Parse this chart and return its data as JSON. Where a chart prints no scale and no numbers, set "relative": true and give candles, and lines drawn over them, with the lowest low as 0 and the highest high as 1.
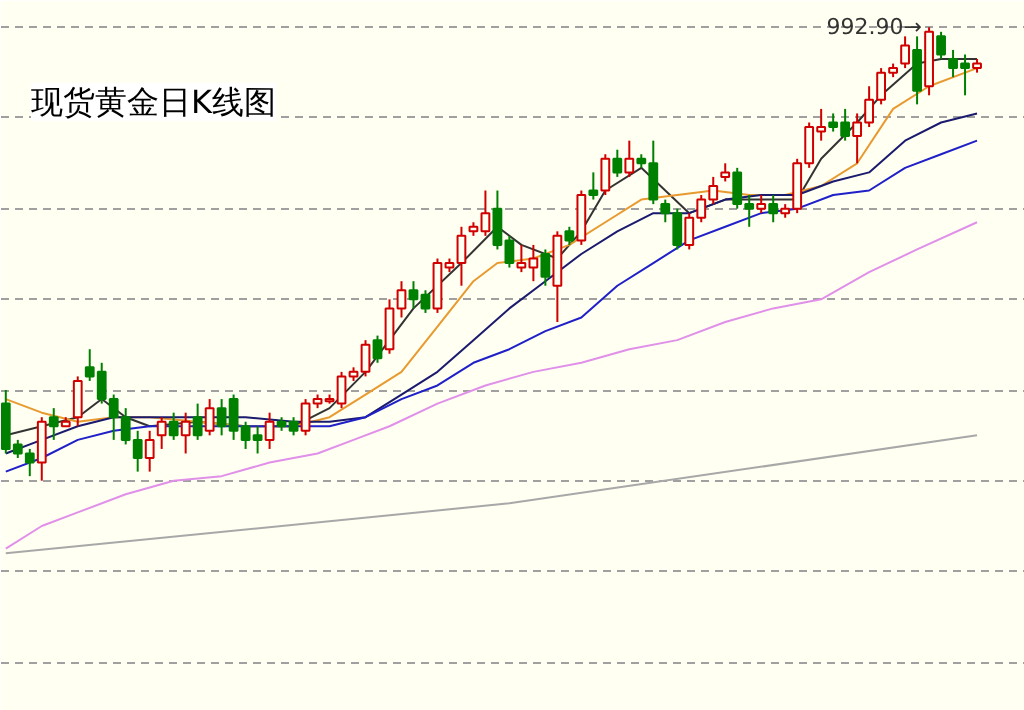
{
  "chart_data": {
    "type": "candlestick",
    "title": "现货黄金日K线图",
    "relative": true,
    "grid": "y",
    "categories": [
      null,
      null,
      null,
      null,
      null,
      null,
      null,
      null,
      null,
      null,
      null,
      null,
      null,
      null,
      null,
      null,
      null,
      null,
      null,
      null,
      null,
      null,
      null,
      null,
      null,
      null,
      null,
      null,
      null,
      null,
      null,
      null,
      null,
      null,
      null,
      null,
      null,
      null,
      null,
      null,
      null,
      null,
      null,
      null,
      null,
      null,
      null,
      null,
      null,
      null,
      null,
      null,
      null,
      null,
      null,
      null,
      null,
      null,
      null,
      null,
      null,
      null,
      null,
      null,
      null,
      null,
      null,
      null,
      null,
      null,
      null,
      null,
      null,
      null,
      null,
      null,
      null,
      null,
      null,
      null,
      null,
      null
    ],
    "colors": [
      "#008000",
      "#008000",
      "#008000",
      "#d00000",
      "#008000",
      "#d00000",
      "#d00000",
      "#008000",
      "#008000",
      "#008000",
      "#008000",
      "#008000",
      "#d00000",
      "#d00000",
      "#008000",
      "#d00000",
      "#008000",
      "#d00000",
      "#008000",
      "#008000",
      "#008000",
      "#008000",
      "#d00000",
      "#008000",
      "#008000",
      "#d00000",
      "#d00000",
      "#d00000",
      "#d00000",
      "#d00000",
      "#d00000",
      "#008000",
      "#d00000",
      "#d00000",
      "#008000",
      "#008000",
      "#d00000",
      "#d00000",
      "#d00000",
      "#d00000",
      "#d00000",
      "#008000",
      "#008000",
      "#d00000",
      "#d00000",
      "#008000",
      "#d00000",
      "#008000",
      "#d00000",
      "#008000",
      "#d00000",
      "#008000",
      "#d00000",
      "#008000",
      "#008000",
      "#008000",
      "#008000",
      "#d00000",
      "#d00000",
      "#d00000",
      "#d00000",
      "#008000",
      "#008000",
      "#d00000",
      "#008000",
      "#d00000",
      "#d00000",
      "#d00000",
      "#d00000",
      "#008000",
      "#008000",
      "#d00000",
      "#d00000",
      "#d00000",
      "#d00000",
      "#d00000",
      "#008000",
      "#d00000",
      "#008000",
      "#008000",
      "#008000",
      "#d00000"
    ],
    "ohlc": [
      [
        0.17,
        0.2,
        0.06,
        0.07
      ],
      [
        0.08,
        0.09,
        0.05,
        0.06
      ],
      [
        0.06,
        0.07,
        0.01,
        0.04
      ],
      [
        0.04,
        0.14,
        0.0,
        0.13
      ],
      [
        0.14,
        0.16,
        0.09,
        0.12
      ],
      [
        0.12,
        0.14,
        0.12,
        0.13
      ],
      [
        0.14,
        0.23,
        0.12,
        0.22
      ],
      [
        0.25,
        0.29,
        0.22,
        0.23
      ],
      [
        0.24,
        0.26,
        0.17,
        0.18
      ],
      [
        0.18,
        0.19,
        0.09,
        0.14
      ],
      [
        0.14,
        0.16,
        0.08,
        0.09
      ],
      [
        0.09,
        0.11,
        0.02,
        0.05
      ],
      [
        0.05,
        0.11,
        0.02,
        0.09
      ],
      [
        0.1,
        0.14,
        0.07,
        0.13
      ],
      [
        0.13,
        0.15,
        0.09,
        0.1
      ],
      [
        0.1,
        0.15,
        0.06,
        0.13
      ],
      [
        0.14,
        0.17,
        0.09,
        0.1
      ],
      [
        0.11,
        0.18,
        0.1,
        0.16
      ],
      [
        0.16,
        0.18,
        0.1,
        0.12
      ],
      [
        0.18,
        0.19,
        0.09,
        0.11
      ],
      [
        0.12,
        0.13,
        0.07,
        0.09
      ],
      [
        0.1,
        0.12,
        0.06,
        0.09
      ],
      [
        0.09,
        0.15,
        0.07,
        0.13
      ],
      [
        0.13,
        0.14,
        0.11,
        0.12
      ],
      [
        0.13,
        0.14,
        0.1,
        0.11
      ],
      [
        0.11,
        0.18,
        0.1,
        0.17
      ],
      [
        0.17,
        0.19,
        0.16,
        0.18
      ],
      [
        0.175,
        0.19,
        0.17,
        0.18
      ],
      [
        0.17,
        0.24,
        0.16,
        0.23
      ],
      [
        0.23,
        0.25,
        0.22,
        0.24
      ],
      [
        0.24,
        0.31,
        0.23,
        0.3
      ],
      [
        0.31,
        0.32,
        0.26,
        0.27
      ],
      [
        0.29,
        0.4,
        0.28,
        0.38
      ],
      [
        0.38,
        0.44,
        0.36,
        0.42
      ],
      [
        0.42,
        0.44,
        0.38,
        0.4
      ],
      [
        0.41,
        0.42,
        0.37,
        0.38
      ],
      [
        0.38,
        0.49,
        0.37,
        0.48
      ],
      [
        0.47,
        0.49,
        0.46,
        0.48
      ],
      [
        0.48,
        0.56,
        0.43,
        0.54
      ],
      [
        0.55,
        0.57,
        0.54,
        0.56
      ],
      [
        0.55,
        0.64,
        0.54,
        0.59
      ],
      [
        0.6,
        0.64,
        0.51,
        0.52
      ],
      [
        0.53,
        0.54,
        0.47,
        0.48
      ],
      [
        0.47,
        0.52,
        0.46,
        0.48
      ],
      [
        0.47,
        0.52,
        0.44,
        0.49
      ],
      [
        0.5,
        0.51,
        0.43,
        0.45
      ],
      [
        0.43,
        0.55,
        0.35,
        0.54
      ],
      [
        0.55,
        0.56,
        0.52,
        0.53
      ],
      [
        0.53,
        0.64,
        0.52,
        0.63
      ],
      [
        0.64,
        0.68,
        0.62,
        0.63
      ],
      [
        0.64,
        0.72,
        0.63,
        0.71
      ],
      [
        0.71,
        0.73,
        0.67,
        0.68
      ],
      [
        0.68,
        0.75,
        0.67,
        0.71
      ],
      [
        0.71,
        0.72,
        0.69,
        0.7
      ],
      [
        0.7,
        0.75,
        0.61,
        0.62
      ],
      [
        0.61,
        0.62,
        0.57,
        0.59
      ],
      [
        0.59,
        0.6,
        0.51,
        0.52
      ],
      [
        0.52,
        0.59,
        0.51,
        0.58
      ],
      [
        0.58,
        0.63,
        0.57,
        0.62
      ],
      [
        0.62,
        0.67,
        0.61,
        0.65
      ],
      [
        0.67,
        0.7,
        0.66,
        0.68
      ],
      [
        0.68,
        0.69,
        0.6,
        0.61
      ],
      [
        0.61,
        0.63,
        0.56,
        0.6
      ],
      [
        0.6,
        0.63,
        0.59,
        0.61
      ],
      [
        0.61,
        0.63,
        0.57,
        0.59
      ],
      [
        0.59,
        0.61,
        0.58,
        0.6
      ],
      [
        0.6,
        0.71,
        0.59,
        0.7
      ],
      [
        0.7,
        0.79,
        0.69,
        0.78
      ],
      [
        0.77,
        0.82,
        0.75,
        0.78
      ],
      [
        0.79,
        0.81,
        0.77,
        0.78
      ],
      [
        0.79,
        0.82,
        0.75,
        0.76
      ],
      [
        0.76,
        0.81,
        0.7,
        0.79
      ],
      [
        0.79,
        0.87,
        0.78,
        0.84
      ],
      [
        0.84,
        0.91,
        0.83,
        0.9
      ],
      [
        0.9,
        0.92,
        0.89,
        0.91
      ],
      [
        0.92,
        0.98,
        0.91,
        0.96
      ],
      [
        0.95,
        0.98,
        0.83,
        0.86
      ],
      [
        0.87,
        1.0,
        0.85,
        0.99
      ],
      [
        0.98,
        0.99,
        0.93,
        0.94
      ],
      [
        0.93,
        0.95,
        0.89,
        0.91
      ],
      [
        0.92,
        0.94,
        0.85,
        0.91
      ],
      [
        0.91,
        0.93,
        0.9,
        0.92
      ]
    ],
    "series": [
      {
        "type": "line",
        "color": "#333333",
        "values": [
          0.1,
          null,
          null,
          0.12,
          null,
          null,
          0.14,
          null,
          0.18,
          null,
          0.14,
          null,
          0.12,
          null,
          null,
          null,
          0.13,
          null,
          null,
          null,
          0.12,
          null,
          null,
          null,
          0.12,
          null,
          null,
          0.16,
          null,
          null,
          0.24,
          null,
          null,
          null,
          0.38,
          null,
          null,
          null,
          0.48,
          null,
          null,
          0.56,
          null,
          0.52,
          null,
          null,
          0.49,
          null,
          0.55,
          null,
          0.64,
          null,
          null,
          0.69,
          null,
          0.64,
          null,
          0.59,
          null,
          null,
          0.62,
          null,
          null,
          0.62,
          null,
          null,
          0.62,
          null,
          0.71,
          null,
          null,
          0.79,
          null,
          0.85,
          null,
          null,
          0.92,
          null,
          0.93,
          null,
          null,
          0.93
        ]
      },
      {
        "type": "line",
        "color": "#e89a30",
        "values": [
          0.18,
          null,
          null,
          0.15,
          null,
          null,
          0.13,
          null,
          null,
          0.14,
          null,
          null,
          0.14,
          null,
          null,
          null,
          0.13,
          null,
          null,
          null,
          0.12,
          null,
          null,
          null,
          0.12,
          null,
          null,
          0.14,
          null,
          null,
          0.19,
          null,
          null,
          0.24,
          null,
          null,
          0.34,
          null,
          null,
          0.44,
          null,
          0.48,
          null,
          null,
          0.49,
          null,
          null,
          0.52,
          null,
          null,
          0.57,
          null,
          null,
          0.62,
          null,
          null,
          0.63,
          null,
          null,
          0.64,
          null,
          null,
          0.63,
          null,
          null,
          0.63,
          null,
          null,
          0.65,
          null,
          null,
          0.7,
          null,
          null,
          0.82,
          null,
          null,
          0.87,
          null,
          null,
          null,
          0.91
        ]
      },
      {
        "type": "line",
        "color": "#1a1a6e",
        "values": [
          0.06,
          null,
          null,
          0.09,
          null,
          null,
          0.12,
          null,
          null,
          0.14,
          null,
          null,
          0.14,
          null,
          null,
          null,
          0.14,
          null,
          null,
          null,
          0.14,
          null,
          null,
          null,
          0.13,
          null,
          null,
          0.13,
          null,
          null,
          0.14,
          null,
          null,
          0.19,
          null,
          null,
          0.24,
          null,
          null,
          0.31,
          null,
          null,
          0.38,
          null,
          null,
          0.44,
          null,
          null,
          0.5,
          null,
          null,
          0.55,
          null,
          null,
          0.59,
          null,
          null,
          0.59,
          null,
          null,
          0.62,
          null,
          null,
          0.63,
          null,
          null,
          0.63,
          null,
          null,
          0.66,
          null,
          null,
          0.68,
          null,
          null,
          0.75,
          null,
          null,
          0.79,
          null,
          null,
          0.81
        ]
      },
      {
        "type": "line",
        "color": "#2020c8",
        "values": [
          0.02,
          null,
          null,
          0.05,
          null,
          null,
          0.09,
          null,
          null,
          0.11,
          null,
          null,
          0.12,
          null,
          null,
          null,
          0.12,
          null,
          null,
          null,
          0.12,
          null,
          null,
          null,
          0.12,
          null,
          null,
          0.12,
          null,
          null,
          0.14,
          null,
          null,
          0.18,
          null,
          null,
          0.21,
          null,
          null,
          0.26,
          null,
          null,
          0.29,
          null,
          null,
          0.33,
          null,
          null,
          0.36,
          null,
          null,
          0.43,
          null,
          null,
          0.48,
          null,
          null,
          0.53,
          null,
          null,
          0.56,
          null,
          null,
          0.59,
          null,
          null,
          0.6,
          null,
          null,
          0.63,
          null,
          null,
          0.64,
          null,
          null,
          0.69,
          null,
          null,
          0.72,
          null,
          null,
          0.75
        ]
      },
      {
        "type": "line",
        "color": "#e090e8",
        "values": [
          -0.15,
          null,
          null,
          -0.1,
          null,
          null,
          -0.07,
          null,
          null,
          null,
          -0.03,
          null,
          null,
          null,
          0.0,
          null,
          null,
          null,
          0.01,
          null,
          null,
          null,
          0.04,
          null,
          null,
          null,
          0.06,
          null,
          null,
          0.09,
          null,
          null,
          0.12,
          null,
          null,
          null,
          0.17,
          null,
          null,
          null,
          0.21,
          null,
          null,
          null,
          0.24,
          null,
          null,
          null,
          0.26,
          null,
          null,
          null,
          0.29,
          null,
          null,
          null,
          0.31,
          null,
          null,
          null,
          0.35,
          null,
          null,
          null,
          0.38,
          null,
          null,
          null,
          0.4,
          null,
          null,
          null,
          0.46,
          null,
          null,
          null,
          0.51,
          null,
          null,
          null,
          null,
          0.57
        ]
      },
      {
        "type": "line",
        "color": "#a8a8a8",
        "values": [
          -0.16,
          null,
          null,
          null,
          null,
          null,
          null,
          null,
          null,
          null,
          null,
          null,
          null,
          null,
          null,
          null,
          null,
          null,
          null,
          null,
          null,
          null,
          null,
          null,
          null,
          null,
          null,
          null,
          null,
          null,
          null,
          null,
          null,
          null,
          null,
          null,
          null,
          null,
          null,
          null,
          null,
          null,
          -0.05,
          null,
          null,
          null,
          null,
          null,
          null,
          null,
          null,
          null,
          null,
          null,
          null,
          null,
          null,
          null,
          null,
          null,
          null,
          null,
          null,
          null,
          null,
          null,
          null,
          null,
          null,
          null,
          null,
          null,
          null,
          null,
          null,
          null,
          null,
          null,
          null,
          null,
          null,
          0.1
        ]
      }
    ],
    "annotations": [
      "992.90→"
    ]
  }
}
